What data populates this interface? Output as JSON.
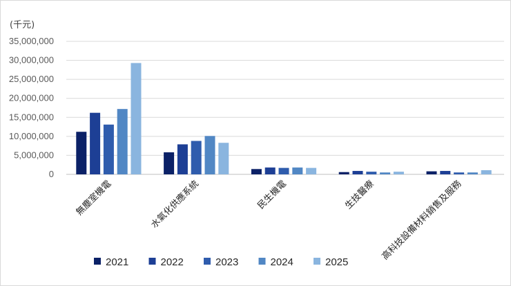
{
  "chart_data": {
    "type": "bar",
    "unit_label": "(千元)",
    "categories": [
      "無塵室機電",
      "水氣化供應系統",
      "民生機電",
      "生技醫療",
      "高科技設備材料銷售及服務"
    ],
    "series": [
      {
        "name": "2021",
        "color": "#0b2167",
        "values": [
          11200000,
          5800000,
          1400000,
          600000,
          800000
        ]
      },
      {
        "name": "2022",
        "color": "#1d3f95",
        "values": [
          16200000,
          7900000,
          1800000,
          900000,
          900000
        ]
      },
      {
        "name": "2023",
        "color": "#2f5cad",
        "values": [
          13100000,
          8800000,
          1700000,
          700000,
          500000
        ]
      },
      {
        "name": "2024",
        "color": "#5187c4",
        "values": [
          17200000,
          10100000,
          1800000,
          500000,
          500000
        ]
      },
      {
        "name": "2025",
        "color": "#8ab5df",
        "values": [
          29300000,
          8300000,
          1700000,
          700000,
          1100000
        ]
      }
    ],
    "ylim": [
      0,
      35000000
    ],
    "yticks": [
      "0",
      "5,000,000",
      "10,000,000",
      "15,000,000",
      "20,000,000",
      "25,000,000",
      "30,000,000",
      "35,000,000"
    ],
    "grid": true,
    "legend_position": "bottom"
  }
}
